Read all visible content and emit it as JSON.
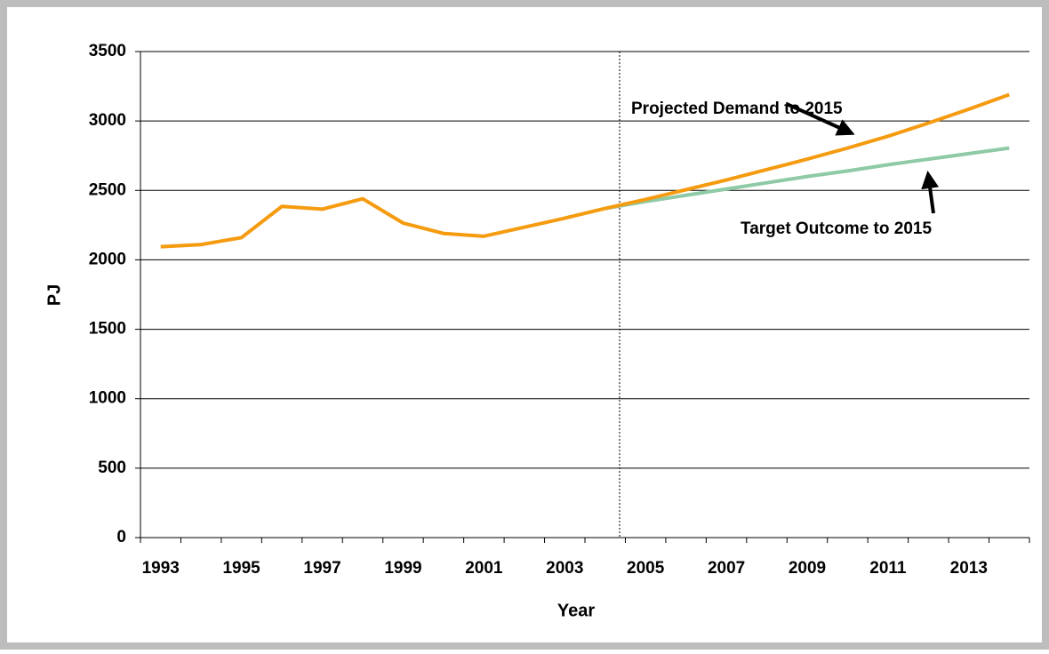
{
  "chart_data": {
    "type": "line",
    "x_label": "Year",
    "y_label": "PJ",
    "categories": [
      "1993",
      null,
      "1995",
      null,
      "1997",
      null,
      "1999",
      null,
      "2001",
      null,
      "2003",
      null,
      "2005",
      null,
      "2007",
      null,
      "2009",
      null,
      "2011",
      null,
      "2013",
      null
    ],
    "series": [
      {
        "color": "#f59b10",
        "values": [
          2095,
          2110,
          2160,
          2385,
          2365,
          2440,
          2265,
          2190,
          2170,
          2235,
          2300,
          2370,
          2435,
          2505,
          2575,
          2650,
          2725,
          2805,
          2890,
          2985,
          3085,
          3190
        ]
      },
      {
        "color": "#8fcaa6",
        "values": [
          null,
          null,
          null,
          null,
          null,
          null,
          null,
          null,
          null,
          null,
          null,
          2370,
          2420,
          2465,
          2510,
          2555,
          2600,
          2640,
          2685,
          2725,
          2765,
          2805
        ]
      }
    ],
    "ylim": [
      0,
      3500
    ],
    "yticks": [
      0,
      500,
      1000,
      1500,
      2000,
      2500,
      3000,
      3500
    ],
    "grid": true,
    "annotations": [
      "Projected Demand to 2015",
      "Target Outcome to 2015"
    ]
  }
}
